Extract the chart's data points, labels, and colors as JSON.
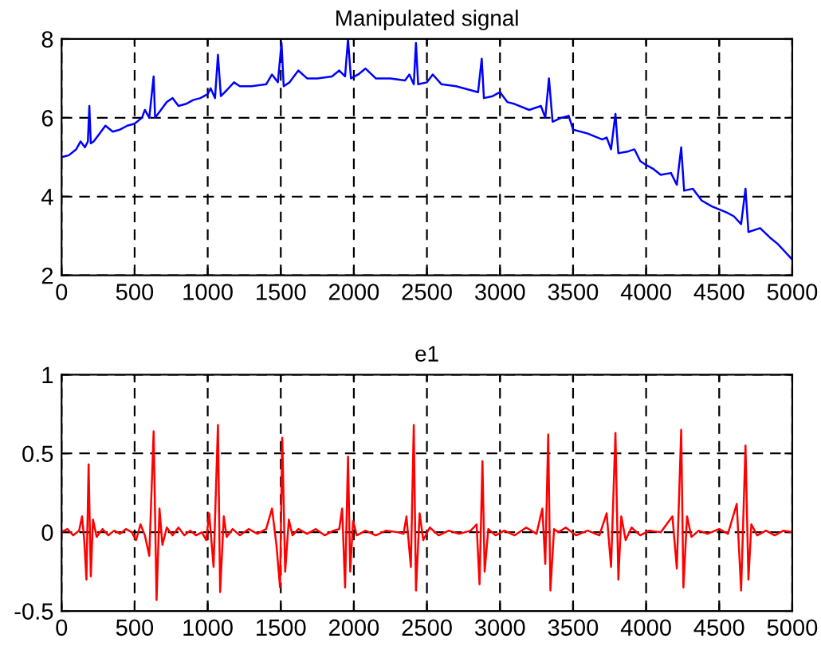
{
  "chart_data": [
    {
      "type": "line",
      "title": "Manipulated signal",
      "xlim": [
        0,
        5000
      ],
      "ylim": [
        2,
        8
      ],
      "xticks": [
        0,
        500,
        1000,
        1500,
        2000,
        2500,
        3000,
        3500,
        4000,
        4500,
        5000
      ],
      "yticks": [
        2,
        4,
        6,
        8
      ],
      "grid": true,
      "line_style": "solid",
      "marker": "none",
      "series": [
        {
          "color": "#0000ff",
          "x": [
            0,
            50,
            100,
            130,
            160,
            180,
            190,
            200,
            220,
            260,
            300,
            350,
            400,
            450,
            500,
            550,
            570,
            600,
            630,
            640,
            680,
            720,
            760,
            800,
            850,
            900,
            950,
            1000,
            1020,
            1050,
            1070,
            1090,
            1130,
            1180,
            1220,
            1300,
            1400,
            1440,
            1480,
            1505,
            1520,
            1560,
            1620,
            1680,
            1750,
            1850,
            1900,
            1940,
            1960,
            1980,
            2030,
            2080,
            2150,
            2250,
            2350,
            2380,
            2410,
            2425,
            2440,
            2500,
            2540,
            2600,
            2700,
            2800,
            2850,
            2875,
            2890,
            2950,
            3000,
            3050,
            3100,
            3200,
            3280,
            3310,
            3335,
            3360,
            3420,
            3470,
            3500,
            3600,
            3700,
            3730,
            3760,
            3790,
            3810,
            3880,
            3920,
            3960,
            4000,
            4050,
            4100,
            4170,
            4210,
            4240,
            4260,
            4320,
            4380,
            4450,
            4550,
            4600,
            4650,
            4680,
            4700,
            4780,
            4850,
            4900,
            4950,
            5000
          ],
          "values": [
            5.0,
            5.05,
            5.2,
            5.4,
            5.25,
            5.4,
            6.3,
            5.35,
            5.4,
            5.6,
            5.8,
            5.65,
            5.7,
            5.8,
            5.85,
            6.0,
            6.2,
            6.0,
            7.05,
            6.0,
            6.2,
            6.4,
            6.5,
            6.3,
            6.35,
            6.45,
            6.5,
            6.6,
            6.75,
            6.5,
            7.6,
            6.55,
            6.7,
            6.9,
            6.8,
            6.8,
            6.85,
            7.1,
            6.9,
            7.9,
            6.8,
            6.9,
            7.2,
            7.0,
            7.0,
            7.05,
            7.2,
            7.05,
            8.0,
            7.0,
            7.1,
            7.25,
            7.0,
            7.0,
            6.95,
            7.1,
            6.85,
            7.9,
            6.85,
            6.9,
            7.1,
            6.85,
            6.8,
            6.7,
            6.65,
            7.5,
            6.5,
            6.55,
            6.65,
            6.4,
            6.35,
            6.2,
            6.3,
            6.0,
            7.0,
            5.9,
            6.0,
            6.05,
            5.7,
            5.6,
            5.45,
            5.5,
            5.2,
            6.1,
            5.1,
            5.15,
            5.2,
            4.9,
            4.8,
            4.7,
            4.55,
            4.6,
            4.3,
            5.25,
            4.15,
            4.2,
            3.9,
            3.75,
            3.6,
            3.5,
            3.3,
            4.2,
            3.1,
            3.2,
            2.95,
            2.8,
            2.6,
            2.4
          ]
        }
      ]
    },
    {
      "type": "line",
      "title": "e1",
      "xlim": [
        0,
        5000
      ],
      "ylim": [
        -0.5,
        1
      ],
      "xticks": [
        0,
        500,
        1000,
        1500,
        2000,
        2500,
        3000,
        3500,
        4000,
        4500,
        5000
      ],
      "yticks": [
        -0.5,
        0,
        0.5,
        1
      ],
      "grid": true,
      "line_style": "solid",
      "marker": "none",
      "series": [
        {
          "color": "#ff0000",
          "x": [
            0,
            40,
            80,
            120,
            140,
            155,
            170,
            185,
            200,
            215,
            240,
            280,
            320,
            360,
            400,
            440,
            480,
            510,
            540,
            570,
            600,
            630,
            650,
            670,
            690,
            720,
            760,
            800,
            840,
            880,
            920,
            960,
            990,
            1010,
            1040,
            1070,
            1085,
            1110,
            1130,
            1170,
            1220,
            1280,
            1340,
            1400,
            1440,
            1470,
            1495,
            1510,
            1530,
            1555,
            1580,
            1620,
            1680,
            1740,
            1800,
            1860,
            1900,
            1920,
            1940,
            1960,
            1975,
            1995,
            2020,
            2080,
            2150,
            2220,
            2300,
            2340,
            2360,
            2390,
            2410,
            2425,
            2450,
            2475,
            2520,
            2580,
            2650,
            2720,
            2800,
            2840,
            2860,
            2880,
            2895,
            2920,
            2970,
            3030,
            3100,
            3180,
            3250,
            3290,
            3310,
            3330,
            3345,
            3370,
            3400,
            3450,
            3520,
            3600,
            3680,
            3730,
            3760,
            3790,
            3810,
            3830,
            3860,
            3900,
            3960,
            4020,
            4100,
            4180,
            4210,
            4240,
            4255,
            4280,
            4310,
            4360,
            4420,
            4500,
            4560,
            4620,
            4650,
            4680,
            4700,
            4720,
            4760,
            4820,
            4880,
            4940,
            5000
          ],
          "values": [
            0,
            0.02,
            -0.02,
            0.01,
            0.1,
            -0.05,
            -0.3,
            0.43,
            -0.28,
            0.08,
            -0.03,
            0.02,
            -0.02,
            0.01,
            -0.01,
            0.02,
            0,
            -0.05,
            0.05,
            -0.02,
            -0.15,
            0.64,
            -0.43,
            0.15,
            -0.08,
            0.03,
            -0.02,
            0.03,
            -0.02,
            0.01,
            -0.02,
            0,
            -0.05,
            0.12,
            -0.22,
            0.68,
            -0.38,
            0.1,
            -0.03,
            0.02,
            -0.02,
            0.02,
            -0.01,
            0.02,
            0.15,
            -0.08,
            -0.35,
            0.6,
            -0.25,
            0.08,
            -0.02,
            0.02,
            -0.01,
            0.02,
            -0.02,
            0.01,
            0.02,
            0.15,
            -0.35,
            0.48,
            -0.25,
            0.07,
            -0.02,
            0.01,
            -0.02,
            0.01,
            0,
            -0.01,
            0.1,
            -0.22,
            0.68,
            -0.37,
            0.12,
            -0.05,
            0.03,
            -0.02,
            0.01,
            -0.01,
            0.01,
            0.05,
            -0.33,
            0.45,
            -0.25,
            0.02,
            -0.02,
            0.01,
            -0.02,
            0.03,
            -0.01,
            0.15,
            -0.2,
            0.62,
            -0.37,
            0.02,
            0,
            0.03,
            -0.02,
            0.01,
            -0.02,
            0.12,
            -0.22,
            0.63,
            -0.3,
            0.1,
            -0.05,
            0.03,
            -0.02,
            0.01,
            0,
            0.1,
            -0.23,
            0.65,
            -0.35,
            0.1,
            -0.03,
            0.01,
            -0.01,
            0.02,
            -0.01,
            0.18,
            -0.37,
            0.55,
            -0.3,
            0.05,
            -0.02,
            0.01,
            -0.02,
            0.01,
            0
          ]
        }
      ]
    }
  ]
}
